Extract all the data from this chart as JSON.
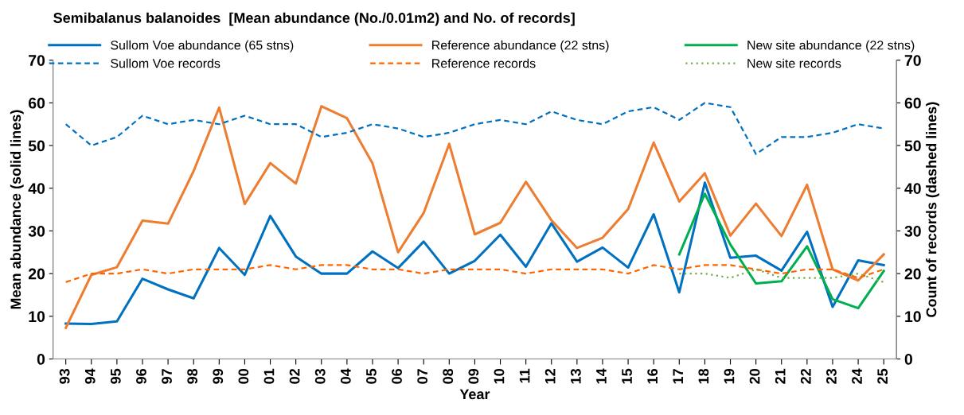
{
  "chart_data": {
    "type": "line",
    "title": "Semibalanus balanoides  [Mean abundance (No./0.01m2) and No. of records]",
    "xlabel": "Year",
    "ylabel": "Mean abundance (solid lines)",
    "y2label": "Count of records (dashed lines)",
    "categories": [
      "93",
      "94",
      "95",
      "96",
      "97",
      "98",
      "99",
      "00",
      "01",
      "02",
      "03",
      "04",
      "05",
      "06",
      "07",
      "08",
      "09",
      "10",
      "11",
      "12",
      "13",
      "14",
      "15",
      "16",
      "17",
      "18",
      "19",
      "20",
      "21",
      "22",
      "23",
      "24",
      "25"
    ],
    "series": [
      {
        "name": "Sullom Voe abundance (65 stns)",
        "color": "#0070c0",
        "line_style": "solid",
        "values": [
          8.3,
          8.2,
          8.8,
          18.8,
          16.3,
          14.2,
          26,
          19.7,
          33.5,
          24,
          20,
          20,
          25.2,
          21.3,
          27.5,
          20,
          23,
          29.1,
          21.6,
          31.8,
          22.8,
          26.1,
          21.4,
          33.9,
          15.6,
          41.3,
          23.7,
          24.2,
          20.7,
          29.8,
          12.2,
          23.1,
          22
        ]
      },
      {
        "name": "Sullom Voe records",
        "color": "#0070c0",
        "line_style": "dashed",
        "axis": "y2",
        "values": [
          55,
          50,
          52,
          57,
          55,
          56,
          55,
          57,
          55,
          55,
          52,
          53,
          55,
          54,
          52,
          53,
          55,
          56,
          55,
          58,
          56,
          55,
          58,
          59,
          56,
          60,
          59,
          48,
          52,
          52,
          53,
          55,
          54
        ]
      },
      {
        "name": "Reference abundance (22 stns)",
        "color": "#ed7d31",
        "line_style": "solid",
        "values": [
          7.3,
          19.7,
          21.5,
          32.4,
          31.7,
          44,
          58.9,
          36.3,
          45.9,
          41.1,
          59.2,
          56.4,
          45.8,
          25,
          34.2,
          50.4,
          29.2,
          31.9,
          41.5,
          32.5,
          26,
          28.4,
          35.1,
          50.7,
          36.9,
          43.5,
          28.9,
          36.4,
          28.8,
          40.8,
          21,
          18.4,
          24.5
        ]
      },
      {
        "name": "Reference records",
        "color": "#ff6600",
        "line_style": "dashed",
        "axis": "y2",
        "values": [
          18,
          20,
          20,
          21,
          20,
          21,
          21,
          21,
          22,
          21,
          22,
          22,
          21,
          21,
          20,
          21,
          21,
          21,
          20,
          21,
          21,
          21,
          20,
          22,
          21,
          22,
          22,
          21,
          20,
          21,
          21,
          19,
          21
        ]
      },
      {
        "name": "New site abundance (22 stns)",
        "color": "#00b050",
        "line_style": "solid",
        "values": [
          null,
          null,
          null,
          null,
          null,
          null,
          null,
          null,
          null,
          null,
          null,
          null,
          null,
          null,
          null,
          null,
          null,
          null,
          null,
          null,
          null,
          null,
          null,
          null,
          24.5,
          38.7,
          26.8,
          17.7,
          18.2,
          26.4,
          14,
          11.9,
          20.6
        ]
      },
      {
        "name": "New site records",
        "color": "#70ad47",
        "line_style": "dotted",
        "axis": "y2",
        "values": [
          null,
          null,
          null,
          null,
          null,
          null,
          null,
          null,
          null,
          null,
          null,
          null,
          null,
          null,
          null,
          null,
          null,
          null,
          null,
          null,
          null,
          null,
          null,
          null,
          20,
          20,
          19,
          21,
          19,
          19,
          19,
          20,
          18
        ]
      }
    ],
    "ylim": [
      0,
      70
    ],
    "yticks": [
      0,
      10,
      20,
      30,
      40,
      50,
      60,
      70
    ],
    "y2lim": [
      0,
      70
    ],
    "y2ticks": [
      0,
      10,
      20,
      30,
      40,
      50,
      60,
      70
    ],
    "grid": false,
    "legend": "top",
    "marker": "none"
  }
}
